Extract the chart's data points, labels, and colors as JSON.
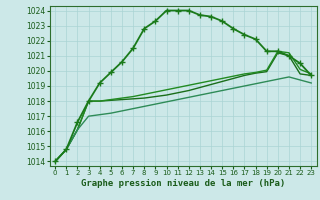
{
  "background_color": "#cce8e8",
  "grid_color": "#aad4d4",
  "line_color_main": "#1a6e1a",
  "title": "Graphe pression niveau de la mer (hPa)",
  "xlabel_hours": [
    0,
    1,
    2,
    3,
    4,
    5,
    6,
    7,
    8,
    9,
    10,
    11,
    12,
    13,
    14,
    15,
    16,
    17,
    18,
    19,
    20,
    21,
    22,
    23
  ],
  "ylim": [
    1013.7,
    1024.3
  ],
  "yticks": [
    1014,
    1015,
    1016,
    1017,
    1018,
    1019,
    1020,
    1021,
    1022,
    1023,
    1024
  ],
  "series": [
    {
      "x": [
        0,
        1,
        2,
        3,
        4,
        5,
        6,
        7,
        8,
        9,
        10,
        11,
        12,
        13,
        14,
        15,
        16,
        17,
        18,
        19,
        20,
        21,
        22,
        23
      ],
      "y": [
        1014.0,
        1014.8,
        1016.6,
        1018.0,
        1019.2,
        1019.9,
        1020.6,
        1021.5,
        1022.8,
        1023.3,
        1024.0,
        1024.0,
        1024.0,
        1023.7,
        1023.6,
        1023.3,
        1022.8,
        1022.4,
        1022.1,
        1021.3,
        1021.3,
        1021.0,
        1020.5,
        1019.7
      ],
      "marker": "+",
      "markersize": 4,
      "linewidth": 1.3,
      "color": "#1a7a1a",
      "zorder": 5
    },
    {
      "x": [
        0,
        1,
        2,
        3,
        4,
        5,
        6,
        7,
        8,
        9,
        10,
        11,
        12,
        13,
        14,
        15,
        16,
        17,
        18,
        19,
        20,
        21,
        22,
        23
      ],
      "y": [
        1014.0,
        1014.8,
        1016.1,
        1018.0,
        1018.0,
        1018.05,
        1018.1,
        1018.15,
        1018.2,
        1018.3,
        1018.4,
        1018.55,
        1018.7,
        1018.9,
        1019.1,
        1019.3,
        1019.5,
        1019.7,
        1019.85,
        1019.95,
        1021.2,
        1021.0,
        1019.8,
        1019.7
      ],
      "marker": null,
      "markersize": 0,
      "linewidth": 1.0,
      "color": "#1a6e1a",
      "zorder": 3
    },
    {
      "x": [
        0,
        1,
        2,
        3,
        4,
        5,
        6,
        7,
        8,
        9,
        10,
        11,
        12,
        13,
        14,
        15,
        16,
        17,
        18,
        19,
        20,
        21,
        22,
        23
      ],
      "y": [
        1014.0,
        1014.8,
        1016.1,
        1018.0,
        1018.0,
        1018.1,
        1018.2,
        1018.3,
        1018.45,
        1018.6,
        1018.75,
        1018.9,
        1019.05,
        1019.2,
        1019.35,
        1019.5,
        1019.65,
        1019.8,
        1019.9,
        1020.05,
        1021.3,
        1021.2,
        1020.1,
        1019.8
      ],
      "marker": null,
      "markersize": 0,
      "linewidth": 1.0,
      "color": "#228b22",
      "zorder": 3
    },
    {
      "x": [
        0,
        1,
        2,
        3,
        4,
        5,
        6,
        7,
        8,
        9,
        10,
        11,
        12,
        13,
        14,
        15,
        16,
        17,
        18,
        19,
        20,
        21,
        22,
        23
      ],
      "y": [
        1014.0,
        1014.8,
        1016.1,
        1017.0,
        1017.1,
        1017.2,
        1017.35,
        1017.5,
        1017.65,
        1017.8,
        1017.95,
        1018.1,
        1018.25,
        1018.4,
        1018.55,
        1018.7,
        1018.85,
        1019.0,
        1019.15,
        1019.3,
        1019.45,
        1019.6,
        1019.4,
        1019.2
      ],
      "marker": null,
      "markersize": 0,
      "linewidth": 1.0,
      "color": "#2e8b57",
      "zorder": 3
    }
  ]
}
